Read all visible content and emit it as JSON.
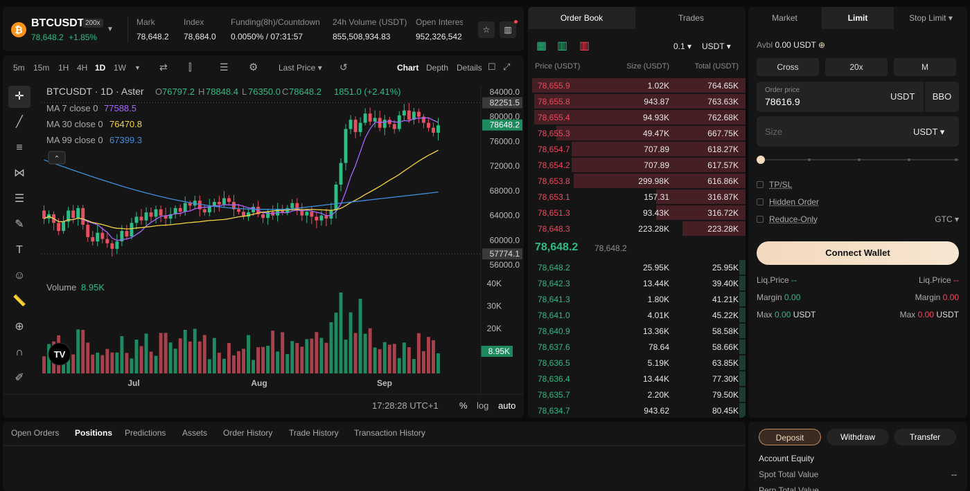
{
  "ticker": {
    "symbol": "BTCUSDT",
    "leverage": "200x",
    "price": "78,648.2",
    "change": "+1.85%",
    "stats": [
      {
        "label": "Mark",
        "value": "78,648.2"
      },
      {
        "label": "Index",
        "value": "78,684.0"
      },
      {
        "label": "Funding(8h)/Countdown",
        "value": "0.0050% / 07:31:57"
      },
      {
        "label": "24h Volume (USDT)",
        "value": "855,508,934.83"
      },
      {
        "label": "Open Interest",
        "value": "952,326,542.4"
      }
    ]
  },
  "chart_toolbar": {
    "intervals": [
      "5m",
      "15m",
      "1H",
      "4H",
      "1D",
      "1W"
    ],
    "active_interval": "1D",
    "price_type": "Last Price",
    "views": [
      "Chart",
      "Depth",
      "Details"
    ],
    "active_view": "Chart"
  },
  "chart_legend": {
    "title": "BTCUSDT · 1D · Aster",
    "ohlc": {
      "O": "76797.2",
      "H": "78848.4",
      "L": "76350.0",
      "C": "78648.2",
      "change": "1851.0 (+2.41%)"
    },
    "ma": [
      {
        "label": "MA 7 close 0",
        "value": "77588.5",
        "color": "#a566ff"
      },
      {
        "label": "MA 30 close 0",
        "value": "76470.8",
        "color": "#f5d442"
      },
      {
        "label": "MA 99 close 0",
        "value": "67399.3",
        "color": "#3d8fe0"
      }
    ],
    "volume_label": "Volume",
    "volume_value": "8.95K"
  },
  "chart_footer": {
    "time": "17:28:28 UTC+1",
    "pct": "%",
    "log": "log",
    "auto": "auto"
  },
  "chart_data": {
    "type": "candlestick",
    "y_ticks": [
      "84000.0",
      "80000.0",
      "76000.0",
      "72000.0",
      "68000.0",
      "64000.0",
      "60000.0",
      "56000.0"
    ],
    "vol_ticks": [
      "40K",
      "30K",
      "20K"
    ],
    "x_ticks": [
      "Jul",
      "Aug",
      "Sep"
    ],
    "price_labels": {
      "high": "82251.5",
      "last": "78648.2",
      "low": "57774.1",
      "volume": "8.95K"
    },
    "ylim": [
      55000,
      85000
    ],
    "vol_lim": [
      0,
      40
    ],
    "closes": [
      63500,
      64200,
      62800,
      61500,
      63000,
      64800,
      63600,
      65200,
      62500,
      60500,
      59800,
      61200,
      60200,
      59500,
      58600,
      59800,
      61500,
      60600,
      62800,
      63800,
      63200,
      64500,
      63800,
      65000,
      64000,
      63500,
      64200,
      65200,
      64600,
      66000,
      65600,
      66400,
      65000,
      64500,
      65500,
      66200,
      65800,
      66800,
      66200,
      65000,
      64600,
      63800,
      64500,
      65400,
      64200,
      63600,
      64600,
      64000,
      65000,
      64500,
      65200,
      66000,
      64800,
      64000,
      64600,
      63800,
      63200,
      64000,
      63500,
      64800,
      69000,
      72500,
      78000,
      79500,
      77500,
      79000,
      80500,
      79200,
      79800,
      78200,
      79500,
      78800,
      78000,
      80200,
      81000,
      79500,
      80800,
      80000,
      79000,
      78200,
      77400,
      78600
    ]
  },
  "orderbook": {
    "tabs": [
      "Order Book",
      "Trades"
    ],
    "active_tab": "Order Book",
    "precision": "0.1",
    "unit": "USDT",
    "headers": [
      "Price (USDT)",
      "Size (USDT)",
      "Total (USDT)"
    ],
    "asks": [
      {
        "price": "78,655.9",
        "size": "1.02K",
        "total": "764.65K",
        "depth": 0.98
      },
      {
        "price": "78,655.8",
        "size": "943.87",
        "total": "763.63K",
        "depth": 0.97
      },
      {
        "price": "78,655.4",
        "size": "94.93K",
        "total": "762.68K",
        "depth": 0.97
      },
      {
        "price": "78,655.3",
        "size": "49.47K",
        "total": "667.75K",
        "depth": 0.87
      },
      {
        "price": "78,654.7",
        "size": "707.89",
        "total": "618.27K",
        "depth": 0.8
      },
      {
        "price": "78,654.2",
        "size": "707.89",
        "total": "617.57K",
        "depth": 0.8
      },
      {
        "price": "78,653.8",
        "size": "299.98K",
        "total": "616.86K",
        "depth": 0.79
      },
      {
        "price": "78,653.1",
        "size": "157.31",
        "total": "316.87K",
        "depth": 0.41
      },
      {
        "price": "78,651.3",
        "size": "93.43K",
        "total": "316.72K",
        "depth": 0.41
      },
      {
        "price": "78,648.3",
        "size": "223.28K",
        "total": "223.28K",
        "depth": 0.29
      }
    ],
    "mid_price": "78,648.2",
    "mark_price": "78,648.2",
    "bids": [
      {
        "price": "78,648.2",
        "size": "25.95K",
        "total": "25.95K",
        "depth": 0.03
      },
      {
        "price": "78,642.3",
        "size": "13.44K",
        "total": "39.40K",
        "depth": 0.03
      },
      {
        "price": "78,641.3",
        "size": "1.80K",
        "total": "41.21K",
        "depth": 0.03
      },
      {
        "price": "78,641.0",
        "size": "4.01K",
        "total": "45.22K",
        "depth": 0.03
      },
      {
        "price": "78,640.9",
        "size": "13.36K",
        "total": "58.58K",
        "depth": 0.03
      },
      {
        "price": "78,637.6",
        "size": "78.64",
        "total": "58.66K",
        "depth": 0.03
      },
      {
        "price": "78,636.5",
        "size": "5.19K",
        "total": "63.85K",
        "depth": 0.03
      },
      {
        "price": "78,636.4",
        "size": "13.44K",
        "total": "77.30K",
        "depth": 0.03
      },
      {
        "price": "78,635.7",
        "size": "2.20K",
        "total": "79.50K",
        "depth": 0.03
      },
      {
        "price": "78,634.7",
        "size": "943.62",
        "total": "80.45K",
        "depth": 0.03
      }
    ]
  },
  "orderform": {
    "tabs": [
      "Market",
      "Limit",
      "Stop Limit"
    ],
    "active_tab": "Limit",
    "avbl_label": "Avbl",
    "avbl_value": "0.00 USDT",
    "margin_mode": "Cross",
    "leverage": "20x",
    "asset_mode": "M",
    "order_price_label": "Order price",
    "order_price": "78616.9",
    "price_unit": "USDT",
    "bbo": "BBO",
    "size_placeholder": "Size",
    "size_unit": "USDT",
    "slider_value": 0,
    "tpsl": "TP/SL",
    "hidden_order": "Hidden Order",
    "reduce_only": "Reduce-Only",
    "tif": "GTC",
    "connect": "Connect Wallet",
    "liq_label": "Liq.Price",
    "liq_long": "--",
    "liq_short": "--",
    "margin_label": "Margin",
    "margin_long": "0.00",
    "margin_short": "0.00",
    "max_label": "Max",
    "max_long": "0.00",
    "max_short": "0.00",
    "max_unit": "USDT"
  },
  "positions": {
    "tabs": [
      "Open Orders",
      "Positions",
      "Predictions",
      "Assets",
      "Order History",
      "Trade History",
      "Transaction History"
    ],
    "active_tab": "Positions"
  },
  "account": {
    "buttons": [
      "Deposit",
      "Withdraw",
      "Transfer"
    ],
    "equity_label": "Account Equity",
    "spot_label": "Spot Total Value",
    "spot_value": "--",
    "perp_label": "Perp Total Value"
  }
}
